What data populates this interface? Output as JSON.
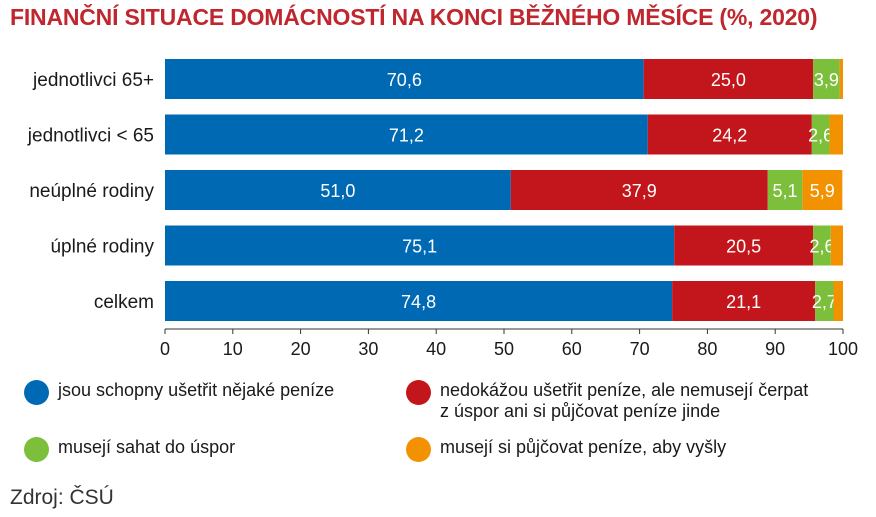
{
  "title": "FINANČNÍ SITUACE DOMÁCNOSTÍ NA KONCI BĚŽNÉHO MĚSÍCE (%, 2020)",
  "source": "Zdroj: ČSÚ",
  "chart_data": {
    "type": "bar",
    "orientation": "horizontal",
    "stacked": true,
    "categories": [
      "jednotlivci 65+",
      "jednotlivci < 65",
      "neúplné rodiny",
      "úplné rodiny",
      "celkem"
    ],
    "series": [
      {
        "name": "jsou schopny ušetřit nějaké peníze",
        "color": "#0069b4",
        "values": [
          70.6,
          71.2,
          51.0,
          75.1,
          74.8
        ],
        "labels": [
          "70,6",
          "71,2",
          "51,0",
          "75,1",
          "74,8"
        ]
      },
      {
        "name": "nedokážou ušetřit peníze, ale nemusejí čerpat z úspor ani si půjčovat peníze jinde",
        "color": "#c3161c",
        "values": [
          25.0,
          24.2,
          37.9,
          20.5,
          21.1
        ],
        "labels": [
          "25,0",
          "24,2",
          "37,9",
          "20,5",
          "21,1"
        ]
      },
      {
        "name": "musejí sahat do úspor",
        "color": "#7bbf3a",
        "values": [
          3.9,
          2.6,
          5.1,
          2.6,
          2.7
        ],
        "labels": [
          "3,9",
          "2,6",
          "5,1",
          "2,6",
          "2,7"
        ]
      },
      {
        "name": "musejí si půjčovat peníze, aby vyšly",
        "color": "#f39200",
        "values": [
          0.5,
          2.0,
          5.9,
          1.8,
          1.4
        ],
        "labels": [
          "",
          "",
          "5,9",
          "",
          ""
        ]
      }
    ],
    "xlim": [
      0,
      100
    ],
    "xticks": [
      "0",
      "10",
      "20",
      "30",
      "40",
      "50",
      "60",
      "70",
      "80",
      "90",
      "100"
    ],
    "grid": false,
    "legend_position": "bottom"
  },
  "legend": {
    "items": [
      {
        "lines": [
          "jsou schopny ušetřit nějaké peníze"
        ],
        "color": "#0069b4"
      },
      {
        "lines": [
          "nedokážou ušetřit peníze, ale nemusejí čerpat",
          "z úspor ani si půjčovat peníze jinde"
        ],
        "color": "#c3161c"
      },
      {
        "lines": [
          "musejí sahat do úspor"
        ],
        "color": "#7bbf3a"
      },
      {
        "lines": [
          "musejí si půjčovat peníze, aby vyšly"
        ],
        "color": "#f39200"
      }
    ]
  }
}
